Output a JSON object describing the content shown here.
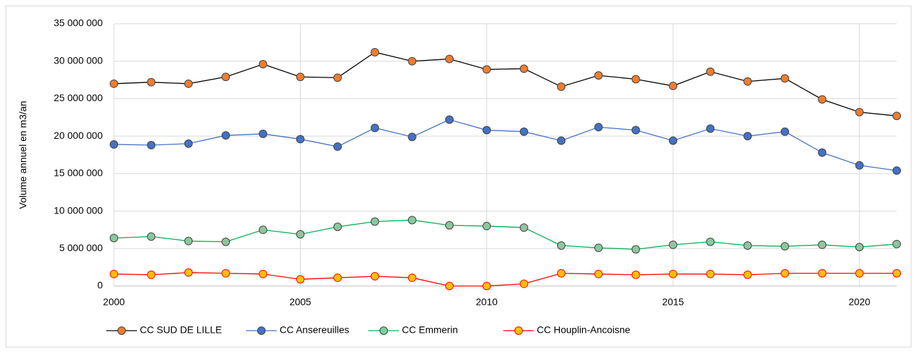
{
  "chart_data": {
    "type": "line",
    "y_label": "Volume annuel en m3/an",
    "x": [
      2000,
      2001,
      2002,
      2003,
      2004,
      2005,
      2006,
      2007,
      2008,
      2009,
      2010,
      2011,
      2012,
      2013,
      2014,
      2015,
      2016,
      2017,
      2018,
      2019,
      2020,
      2021
    ],
    "xlim": [
      2000,
      2021
    ],
    "xticks": [
      2000,
      2005,
      2010,
      2015,
      2020
    ],
    "ylim": [
      0,
      35000000
    ],
    "yticks": [
      0,
      {
        "value": 5000000,
        "label": "5 000 000"
      },
      {
        "value": 10000000,
        "label": "10 000 000"
      },
      {
        "value": 15000000,
        "label": "15 000 000"
      },
      {
        "value": 20000000,
        "label": "20 000 000"
      },
      {
        "value": 25000000,
        "label": "25 000 000"
      },
      {
        "value": 30000000,
        "label": "30 000 000"
      },
      {
        "value": 35000000,
        "label": "35 000 000"
      }
    ],
    "grid": true,
    "legend": "bottom",
    "series": [
      {
        "name": "CC SUD DE LILLE",
        "color": "#000000",
        "marker_color": "#ed7d31",
        "values": [
          27000000,
          27200000,
          27000000,
          27900000,
          29600000,
          27900000,
          27800000,
          31200000,
          30000000,
          30300000,
          28900000,
          29000000,
          26600000,
          28100000,
          27600000,
          26700000,
          28600000,
          27300000,
          27700000,
          24900000,
          23200000,
          22700000
        ]
      },
      {
        "name": "CC Ansereuilles",
        "color": "#4472c4",
        "marker_color": "#4472c4",
        "values": [
          18900000,
          18800000,
          19000000,
          20100000,
          20300000,
          19600000,
          18600000,
          21100000,
          19900000,
          22200000,
          20800000,
          20600000,
          19400000,
          21200000,
          20800000,
          19400000,
          21000000,
          20000000,
          20600000,
          17800000,
          16100000,
          15400000
        ]
      },
      {
        "name": "CC Emmerin",
        "color": "#00b050",
        "marker_color": "#8cc79d",
        "values": [
          6400000,
          6600000,
          6000000,
          5900000,
          7500000,
          6900000,
          7900000,
          8600000,
          8800000,
          8100000,
          8000000,
          7800000,
          5400000,
          5100000,
          4900000,
          5500000,
          5900000,
          5400000,
          5300000,
          5500000,
          5200000,
          5600000
        ]
      },
      {
        "name": "CC Houplin-Ancoisne",
        "color": "#ff0000",
        "marker_color": "#ffc000",
        "values": [
          1600000,
          1500000,
          1800000,
          1700000,
          1600000,
          900000,
          1100000,
          1300000,
          1100000,
          0,
          0,
          300000,
          1700000,
          1600000,
          1500000,
          1600000,
          1600000,
          1500000,
          1700000,
          1700000,
          1700000,
          1700000
        ]
      }
    ]
  }
}
